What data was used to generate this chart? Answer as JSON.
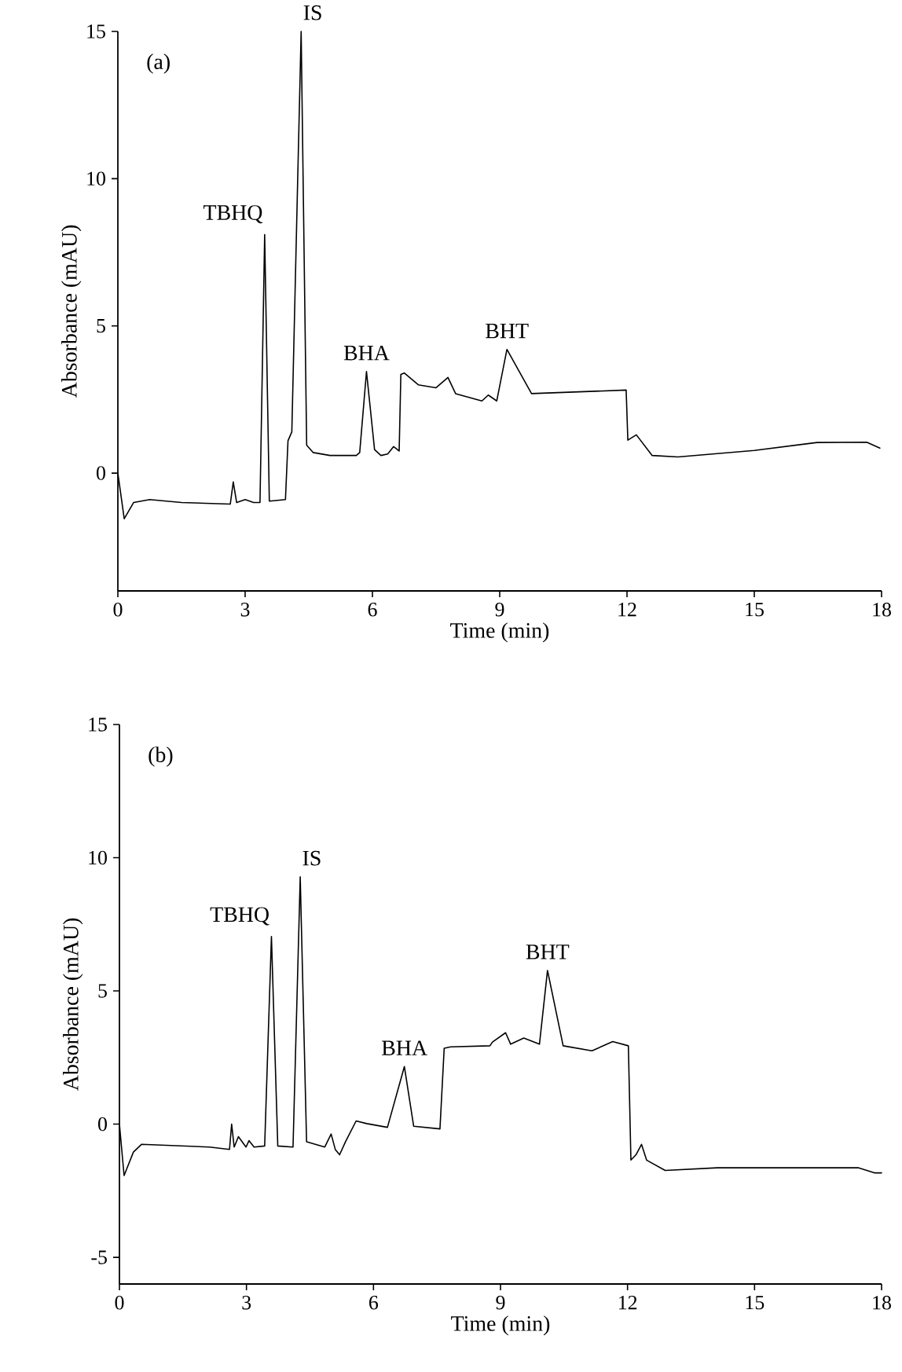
{
  "chart_data": [
    {
      "type": "line",
      "xlabel": "Time (min)",
      "ylabel": "Absorbance (mAU)",
      "xlim": [
        0,
        18
      ],
      "ylim": [
        -4,
        15
      ],
      "xticks": [
        0,
        3,
        6,
        9,
        12,
        15,
        18
      ],
      "yticks": [
        0,
        5,
        10,
        15
      ],
      "annotations": [
        "(a)",
        {
          "text": "TBHQ",
          "x": 3.46,
          "y": 8.1
        },
        {
          "text": "IS",
          "x": 4.32,
          "y": 15
        },
        {
          "text": "BHA",
          "x": 5.86,
          "y": 3.45
        },
        {
          "text": "BHT",
          "x": 9.17,
          "y": 4.2
        }
      ],
      "series": [
        {
          "color": "#000000",
          "x": [
            0,
            0.15,
            0.37,
            0.75,
            1.5,
            2.65,
            2.72,
            2.8,
            3.0,
            3.2,
            3.35,
            3.46,
            3.57,
            3.95,
            4.01,
            4.1,
            4.32,
            4.45,
            4.6,
            5.0,
            5.62,
            5.7,
            5.86,
            6.05,
            6.2,
            6.36,
            6.5,
            6.63,
            6.67,
            6.75,
            7.08,
            7.5,
            7.78,
            7.96,
            8.58,
            8.73,
            8.93,
            9.17,
            9.75,
            11.98,
            12.02,
            12.22,
            12.59,
            13.2,
            15,
            16.48,
            17.65,
            17.96
          ],
          "values": [
            0,
            -1.55,
            -1.0,
            -0.9,
            -1.0,
            -1.05,
            -0.3,
            -1.0,
            -0.9,
            -1.0,
            -1.0,
            8.1,
            -0.95,
            -0.9,
            1.1,
            1.4,
            15,
            0.95,
            0.7,
            0.6,
            0.6,
            0.7,
            3.45,
            0.8,
            0.6,
            0.65,
            0.9,
            0.75,
            3.35,
            3.4,
            3.0,
            2.9,
            3.25,
            2.7,
            2.45,
            2.65,
            2.45,
            4.2,
            2.7,
            2.82,
            1.12,
            1.3,
            0.6,
            0.55,
            0.77,
            1.04,
            1.05,
            0.85
          ]
        }
      ]
    },
    {
      "type": "line",
      "xlabel": "Time (min)",
      "ylabel": "Absorbance (mAU)",
      "xlim": [
        0,
        18
      ],
      "ylim": [
        -6,
        15
      ],
      "xticks": [
        0,
        3,
        6,
        9,
        12,
        15,
        18
      ],
      "yticks": [
        -5,
        0,
        5,
        10,
        15
      ],
      "annotations": [
        "(b)",
        {
          "text": "TBHQ",
          "x": 3.59,
          "y": 7.04
        },
        {
          "text": "IS",
          "x": 4.27,
          "y": 9.28
        },
        {
          "text": "BHA",
          "x": 6.73,
          "y": 2.16
        },
        {
          "text": "BHT",
          "x": 10.11,
          "y": 5.77
        }
      ],
      "series": [
        {
          "color": "#000000",
          "x": [
            0,
            0.11,
            0.33,
            0.52,
            2.13,
            2.6,
            2.65,
            2.71,
            2.81,
            2.99,
            3.06,
            3.18,
            3.43,
            3.59,
            3.74,
            4.1,
            4.27,
            4.42,
            4.85,
            5.0,
            5.1,
            5.2,
            5.34,
            5.59,
            5.84,
            6.33,
            6.73,
            6.95,
            7.57,
            7.67,
            7.82,
            8.75,
            8.81,
            9.12,
            9.24,
            9.55,
            9.92,
            10.11,
            10.48,
            11.16,
            11.65,
            12.02,
            12.08,
            12.2,
            12.33,
            12.45,
            12.89,
            14.12,
            17.46,
            17.83,
            18
          ],
          "values": [
            0,
            -1.93,
            -1.05,
            -0.76,
            -0.86,
            -0.95,
            0.0,
            -0.86,
            -0.47,
            -0.86,
            -0.62,
            -0.86,
            -0.82,
            7.04,
            -0.82,
            -0.86,
            9.28,
            -0.66,
            -0.86,
            -0.37,
            -0.96,
            -1.15,
            -0.66,
            0.12,
            0.02,
            -0.12,
            2.16,
            -0.08,
            -0.18,
            2.85,
            2.9,
            2.94,
            3.08,
            3.43,
            3.0,
            3.23,
            3.0,
            5.77,
            2.94,
            2.75,
            3.1,
            2.94,
            -1.35,
            -1.15,
            -0.76,
            -1.35,
            -1.74,
            -1.64,
            -1.64,
            -1.83,
            -1.83
          ]
        }
      ]
    }
  ]
}
